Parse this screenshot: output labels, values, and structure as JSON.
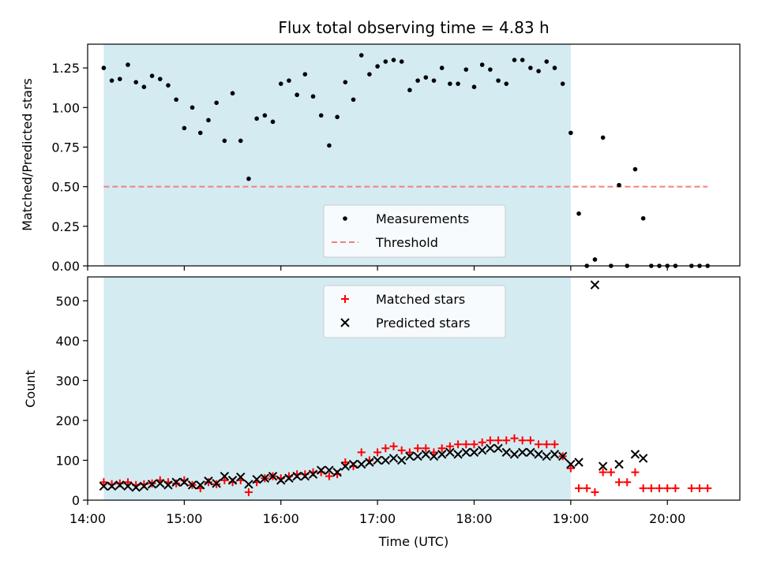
{
  "title": "Flux total observing time = 4.83 h",
  "colors": {
    "observing_window": "#add8e6",
    "measurements": "#000000",
    "threshold": "#f08080",
    "matched": "#ff0000",
    "predicted": "#000000"
  },
  "chart_data": [
    {
      "type": "scatter",
      "ylabel": "Matched/Predicted stars",
      "xlim": [
        "14:00",
        "20:45"
      ],
      "ylim": [
        0,
        1.4
      ],
      "yticks": [
        "0.00",
        "0.25",
        "0.50",
        "0.75",
        "1.00",
        "1.25"
      ],
      "observing_window": [
        "14:10",
        "19:00"
      ],
      "legend": {
        "position": "lower center",
        "entries": [
          "Measurements",
          "Threshold"
        ]
      },
      "threshold": {
        "name": "Threshold",
        "value": 0.5,
        "x": [
          "14:10",
          "20:25"
        ]
      },
      "series": [
        {
          "name": "Measurements",
          "x": [
            "14:10",
            "14:15",
            "14:20",
            "14:25",
            "14:30",
            "14:35",
            "14:40",
            "14:45",
            "14:50",
            "14:55",
            "15:00",
            "15:05",
            "15:10",
            "15:15",
            "15:20",
            "15:25",
            "15:30",
            "15:35",
            "15:40",
            "15:45",
            "15:50",
            "15:55",
            "16:00",
            "16:05",
            "16:10",
            "16:15",
            "16:20",
            "16:25",
            "16:30",
            "16:35",
            "16:40",
            "16:45",
            "16:50",
            "16:55",
            "17:00",
            "17:05",
            "17:10",
            "17:15",
            "17:20",
            "17:25",
            "17:30",
            "17:35",
            "17:40",
            "17:45",
            "17:50",
            "17:55",
            "18:00",
            "18:05",
            "18:10",
            "18:15",
            "18:20",
            "18:25",
            "18:30",
            "18:35",
            "18:40",
            "18:45",
            "18:50",
            "18:55",
            "19:00",
            "19:05",
            "19:10",
            "19:15",
            "19:20",
            "19:25",
            "19:30",
            "19:35",
            "19:40",
            "19:45",
            "19:50",
            "19:55",
            "20:00",
            "20:05",
            "20:15",
            "20:20",
            "20:25"
          ],
          "y": [
            1.25,
            1.17,
            1.18,
            1.27,
            1.16,
            1.13,
            1.2,
            1.18,
            1.14,
            1.05,
            0.87,
            1.0,
            0.84,
            0.92,
            1.03,
            0.79,
            1.09,
            0.79,
            0.55,
            0.93,
            0.95,
            0.91,
            1.15,
            1.17,
            1.08,
            1.21,
            1.07,
            0.95,
            0.76,
            0.94,
            1.16,
            1.05,
            1.33,
            1.21,
            1.26,
            1.29,
            1.3,
            1.29,
            1.11,
            1.17,
            1.19,
            1.17,
            1.25,
            1.15,
            1.15,
            1.24,
            1.13,
            1.27,
            1.24,
            1.17,
            1.15,
            1.3,
            1.3,
            1.25,
            1.23,
            1.29,
            1.25,
            1.15,
            0.84,
            0.33,
            0.0,
            0.04,
            0.81,
            0.0,
            0.51,
            0.0,
            0.61,
            0.3,
            0.0,
            0.0,
            0.0,
            0.0,
            0.0,
            0.0,
            0.0
          ]
        }
      ]
    },
    {
      "type": "scatter",
      "xlabel": "Time (UTC)",
      "ylabel": "Count",
      "xlim": [
        "14:00",
        "20:45"
      ],
      "ylim": [
        0,
        560
      ],
      "yticks": [
        "0",
        "100",
        "200",
        "300",
        "400",
        "500"
      ],
      "xticks": [
        "14:00",
        "15:00",
        "16:00",
        "17:00",
        "18:00",
        "19:00",
        "20:00"
      ],
      "observing_window": [
        "14:10",
        "19:00"
      ],
      "legend": {
        "position": "upper center",
        "entries": [
          "Matched stars",
          "Predicted stars"
        ]
      },
      "series": [
        {
          "name": "Matched stars",
          "marker": "+",
          "x": [
            "14:10",
            "14:15",
            "14:20",
            "14:25",
            "14:30",
            "14:35",
            "14:40",
            "14:45",
            "14:50",
            "14:55",
            "15:00",
            "15:05",
            "15:10",
            "15:15",
            "15:20",
            "15:25",
            "15:30",
            "15:35",
            "15:40",
            "15:45",
            "15:50",
            "15:55",
            "16:00",
            "16:05",
            "16:10",
            "16:15",
            "16:20",
            "16:25",
            "16:30",
            "16:35",
            "16:40",
            "16:45",
            "16:50",
            "16:55",
            "17:00",
            "17:05",
            "17:10",
            "17:15",
            "17:20",
            "17:25",
            "17:30",
            "17:35",
            "17:40",
            "17:45",
            "17:50",
            "17:55",
            "18:00",
            "18:05",
            "18:10",
            "18:15",
            "18:20",
            "18:25",
            "18:30",
            "18:35",
            "18:40",
            "18:45",
            "18:50",
            "18:55",
            "19:00",
            "19:05",
            "19:10",
            "19:15",
            "19:20",
            "19:25",
            "19:30",
            "19:35",
            "19:40",
            "19:45",
            "19:50",
            "19:55",
            "20:00",
            "20:05",
            "20:15",
            "20:20",
            "20:25"
          ],
          "y": [
            45,
            40,
            42,
            45,
            38,
            40,
            42,
            50,
            45,
            42,
            50,
            38,
            30,
            45,
            40,
            50,
            45,
            50,
            20,
            45,
            55,
            60,
            55,
            60,
            65,
            65,
            70,
            70,
            60,
            65,
            95,
            85,
            120,
            100,
            120,
            130,
            135,
            125,
            120,
            130,
            130,
            120,
            130,
            135,
            140,
            140,
            140,
            145,
            150,
            150,
            150,
            155,
            150,
            150,
            140,
            140,
            140,
            110,
            80,
            30,
            30,
            20,
            70,
            70,
            45,
            45,
            70,
            30,
            30,
            30,
            30,
            30,
            30,
            30,
            30
          ]
        },
        {
          "name": "Predicted stars",
          "marker": "x",
          "x": [
            "14:10",
            "14:15",
            "14:20",
            "14:25",
            "14:30",
            "14:35",
            "14:40",
            "14:45",
            "14:50",
            "14:55",
            "15:00",
            "15:05",
            "15:10",
            "15:15",
            "15:20",
            "15:25",
            "15:30",
            "15:35",
            "15:40",
            "15:45",
            "15:50",
            "15:55",
            "16:00",
            "16:05",
            "16:10",
            "16:15",
            "16:20",
            "16:25",
            "16:30",
            "16:35",
            "16:40",
            "16:45",
            "16:50",
            "16:55",
            "17:00",
            "17:05",
            "17:10",
            "17:15",
            "17:20",
            "17:25",
            "17:30",
            "17:35",
            "17:40",
            "17:45",
            "17:50",
            "17:55",
            "18:00",
            "18:05",
            "18:10",
            "18:15",
            "18:20",
            "18:25",
            "18:30",
            "18:35",
            "18:40",
            "18:45",
            "18:50",
            "18:55",
            "19:00",
            "19:05",
            "19:15",
            "19:20",
            "19:30",
            "19:40",
            "19:45"
          ],
          "y": [
            35,
            35,
            38,
            35,
            32,
            35,
            40,
            42,
            38,
            45,
            45,
            38,
            38,
            48,
            42,
            60,
            50,
            58,
            40,
            52,
            55,
            60,
            50,
            55,
            60,
            60,
            65,
            75,
            75,
            70,
            85,
            90,
            90,
            95,
            100,
            100,
            105,
            100,
            110,
            110,
            115,
            110,
            115,
            120,
            115,
            120,
            120,
            125,
            130,
            130,
            120,
            115,
            120,
            120,
            115,
            110,
            115,
            110,
            90,
            95,
            540,
            85,
            90,
            115,
            105
          ]
        }
      ]
    }
  ]
}
